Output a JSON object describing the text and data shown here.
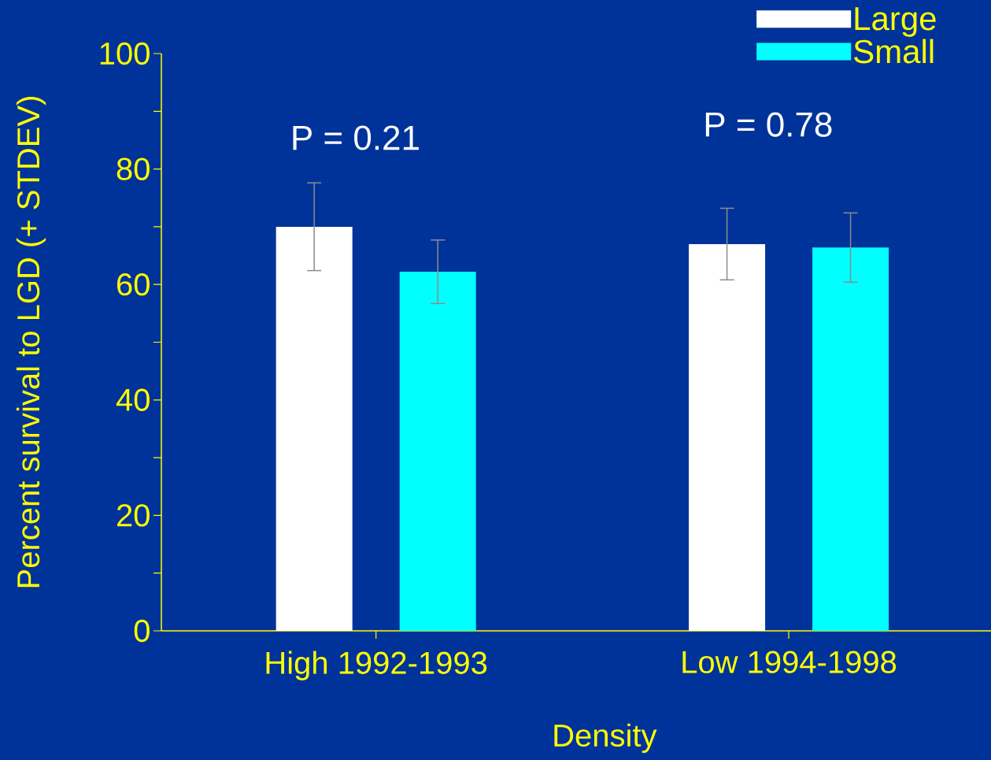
{
  "chart_data": {
    "type": "bar",
    "xlabel": "Density",
    "ylabel": "Percent survival to LGD (+ STDEV)",
    "categories": [
      "High 1992-1993",
      "Low 1994-1998"
    ],
    "series": [
      {
        "name": "Large",
        "color": "#ffffff",
        "values": [
          70,
          67
        ],
        "errors": [
          7.6,
          6.2
        ]
      },
      {
        "name": "Small",
        "color": "#00ffff",
        "values": [
          62.2,
          66.4
        ],
        "errors": [
          5.5,
          6
        ]
      }
    ],
    "ylim": [
      0,
      100
    ],
    "yticks": [
      0,
      {
        "value": 10,
        "label": null
      },
      20,
      {
        "value": 30,
        "label": null
      },
      40,
      {
        "value": 50,
        "label": null
      },
      60,
      {
        "value": 70,
        "label": null
      },
      80,
      {
        "value": 90,
        "label": null
      },
      100
    ],
    "legend": "top right",
    "annotations": [
      "P = 0.21",
      "P = 0.78"
    ]
  }
}
